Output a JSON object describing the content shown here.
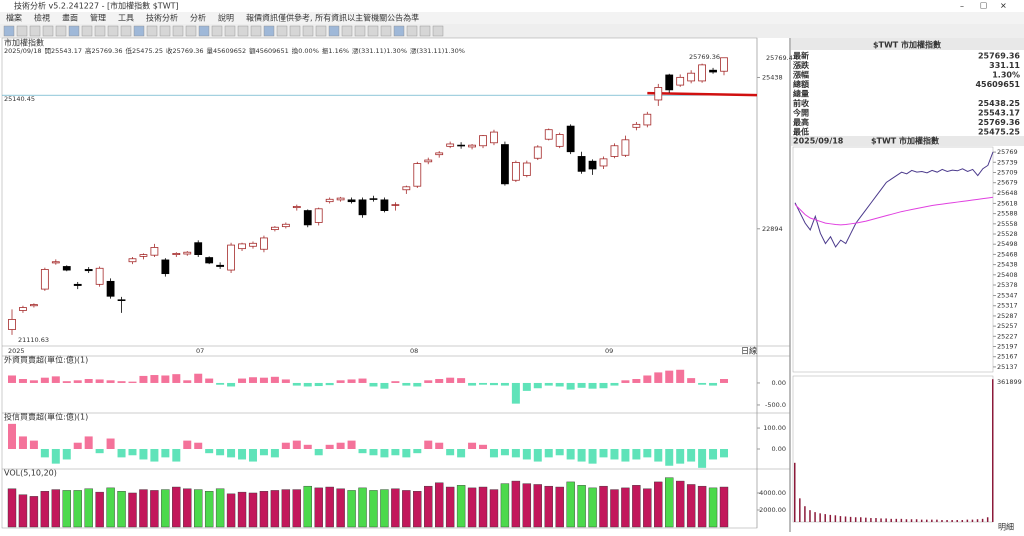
{
  "window_title": "技術分析 v5.2.241227 - [市加權指數 $TWT]",
  "menu": [
    "檔案",
    "檢視",
    "畫面",
    "管理",
    "工具",
    "技術分析",
    "分析",
    "說明",
    "報價資訊僅供參考, 所有資訊以主管機關公告為準"
  ],
  "chart_data": [
    {
      "type": "candlestick",
      "title": "市加權指數",
      "info": [
        "2025/09/18",
        "開25543.17",
        "高25769.36",
        "低25475.25",
        "收25769.36",
        "量45609652",
        "額45609651",
        "換0.00%",
        "振1.16%",
        "漲(331.11)1.30%",
        "漲(331.11)1.30%"
      ],
      "info_colors": [
        "#333",
        "#c00",
        "#c00",
        "#c00",
        "#c00",
        "#333",
        "#333",
        "#333",
        "#333",
        "#c00",
        "#c00"
      ],
      "up_color": "#a52a2a",
      "down_color": "#000000",
      "candles": [
        [
          21200,
          21540,
          21110.63,
          21370
        ],
        [
          21520,
          21600,
          21480,
          21570
        ],
        [
          21600,
          21640,
          21570,
          21620
        ],
        [
          21880,
          22240,
          21850,
          22210
        ],
        [
          22320,
          22380,
          22290,
          22340
        ],
        [
          22260,
          22280,
          22180,
          22200
        ],
        [
          21960,
          22000,
          21880,
          21940
        ],
        [
          22210,
          22250,
          22150,
          22190
        ],
        [
          21960,
          22260,
          21920,
          22230
        ],
        [
          22010,
          22060,
          21720,
          21760
        ],
        [
          21700,
          21750,
          21480,
          21690
        ],
        [
          22340,
          22420,
          22300,
          22390
        ],
        [
          22430,
          22480,
          22380,
          22460
        ],
        [
          22450,
          22640,
          22420,
          22580
        ],
        [
          22370,
          22400,
          22090,
          22140
        ],
        [
          22460,
          22500,
          22420,
          22480
        ],
        [
          22470,
          22520,
          22440,
          22500
        ],
        [
          22660,
          22700,
          22420,
          22460
        ],
        [
          22410,
          22430,
          22300,
          22320
        ],
        [
          22280,
          22330,
          22220,
          22260
        ],
        [
          22200,
          22660,
          22150,
          22620
        ],
        [
          22560,
          22660,
          22520,
          22640
        ],
        [
          22600,
          22680,
          22560,
          22650
        ],
        [
          22550,
          22780,
          22500,
          22740
        ],
        [
          22880,
          22940,
          22850,
          22920
        ],
        [
          22930,
          23000,
          22900,
          22970
        ],
        [
          23250,
          23300,
          23200,
          23270
        ],
        [
          23200,
          23220,
          22920,
          22960
        ],
        [
          23000,
          23250,
          22950,
          23230
        ],
        [
          23350,
          23420,
          23320,
          23390
        ],
        [
          23380,
          23430,
          23350,
          23410
        ],
        [
          23380,
          23420,
          23320,
          23350
        ],
        [
          23380,
          23420,
          23080,
          23130
        ],
        [
          23400,
          23450,
          23350,
          23390
        ],
        [
          23380,
          23420,
          23170,
          23200
        ],
        [
          23290,
          23340,
          23200,
          23300
        ],
        [
          23550,
          23620,
          23480,
          23600
        ],
        [
          23610,
          24020,
          23580,
          23990
        ],
        [
          24020,
          24090,
          23980,
          24050
        ],
        [
          24140,
          24200,
          24090,
          24170
        ],
        [
          24280,
          24360,
          24250,
          24320
        ],
        [
          24300,
          24350,
          24240,
          24290
        ],
        [
          24270,
          24320,
          24230,
          24300
        ],
        [
          24290,
          24470,
          24250,
          24460
        ],
        [
          24340,
          24560,
          24300,
          24520
        ],
        [
          24310,
          24360,
          23620,
          23650
        ],
        [
          23710,
          24040,
          23680,
          24010
        ],
        [
          23790,
          24040,
          23760,
          24000
        ],
        [
          24080,
          24300,
          24050,
          24270
        ],
        [
          24400,
          24580,
          24380,
          24560
        ],
        [
          24280,
          24510,
          24250,
          24480
        ],
        [
          24620,
          24650,
          24150,
          24190
        ],
        [
          24110,
          24190,
          23820,
          23860
        ],
        [
          24030,
          24060,
          23800,
          23900
        ],
        [
          23950,
          24110,
          23900,
          24070
        ],
        [
          24110,
          24330,
          24080,
          24290
        ],
        [
          24130,
          24460,
          24100,
          24390
        ],
        [
          24600,
          24690,
          24550,
          24650
        ],
        [
          24640,
          24860,
          24600,
          24820
        ],
        [
          25060,
          25330,
          24960,
          25270
        ],
        [
          25480,
          25500,
          25180,
          25230
        ],
        [
          25310,
          25490,
          25280,
          25440
        ],
        [
          25380,
          25560,
          25340,
          25510
        ],
        [
          25380,
          25670,
          25350,
          25650
        ],
        [
          25560,
          25600,
          25500,
          25530
        ],
        [
          25543.17,
          25769.36,
          25475.25,
          25769.36
        ]
      ],
      "ylim": [
        20940,
        25900
      ],
      "yticks": [
        22894,
        25438
      ],
      "last_price": {
        "value": 25769.36,
        "label": "25769.4"
      },
      "ref_line": 25140.45,
      "ref_color": "#4aa3c0",
      "trend_color": "#d01010",
      "x_labels": [
        "2025",
        "07",
        "08",
        "09"
      ],
      "period": "日線"
    },
    {
      "type": "bar",
      "title": "外資買賣超(單位:億)(1)",
      "positive_color": "#f4729a",
      "negative_color": "#5fe3b9",
      "values": [
        170,
        90,
        60,
        120,
        150,
        40,
        60,
        90,
        80,
        60,
        40,
        30,
        160,
        180,
        170,
        200,
        60,
        210,
        100,
        -40,
        -80,
        100,
        130,
        120,
        140,
        80,
        -60,
        -80,
        -70,
        -50,
        60,
        80,
        100,
        -80,
        -130,
        40,
        -60,
        -80,
        60,
        90,
        120,
        110,
        -60,
        -40,
        -50,
        -60,
        -470,
        -180,
        -120,
        -60,
        -80,
        -150,
        -110,
        -130,
        -120,
        -60,
        60,
        90,
        170,
        240,
        280,
        300,
        110,
        -40,
        -60,
        90
      ],
      "ylim": [
        -660,
        590
      ],
      "yticks": [
        {
          "value": 0,
          "label": "0.00"
        },
        {
          "value": -500,
          "label": "-500.0"
        }
      ]
    },
    {
      "type": "bar",
      "title": "投信買賣超(單位:億)(1)",
      "positive_color": "#f4729a",
      "negative_color": "#5fe3b9",
      "values": [
        120,
        60,
        40,
        -40,
        -70,
        -50,
        30,
        60,
        -20,
        50,
        -40,
        -30,
        -50,
        -60,
        -40,
        -60,
        40,
        30,
        -20,
        -30,
        -40,
        -50,
        -60,
        -30,
        -40,
        30,
        40,
        20,
        -30,
        20,
        30,
        40,
        -20,
        -30,
        -40,
        -30,
        -40,
        -20,
        40,
        30,
        -30,
        -40,
        30,
        20,
        -40,
        -30,
        -40,
        -50,
        -60,
        -40,
        -30,
        -50,
        -60,
        -70,
        -40,
        -50,
        -60,
        -50,
        -40,
        -60,
        -80,
        -70,
        -60,
        -90,
        -50,
        -40
      ],
      "ylim": [
        -86,
        148
      ],
      "yticks": [
        {
          "value": 0,
          "label": "0.00"
        },
        {
          "value": 100,
          "label": "100.00"
        }
      ]
    },
    {
      "type": "volume",
      "title": "VOL(5,10,20)",
      "up_color": "#c2185b",
      "down_color": "#4cd94c",
      "values": [
        4500,
        3800,
        3600,
        4200,
        4400,
        4300,
        4300,
        4500,
        4100,
        4600,
        4200,
        4000,
        4400,
        4300,
        4400,
        4700,
        4500,
        4400,
        4200,
        4500,
        3900,
        4100,
        4000,
        4200,
        4300,
        4400,
        4400,
        4800,
        4600,
        4700,
        4500,
        4300,
        4600,
        4300,
        4400,
        4500,
        4300,
        4200,
        4800,
        5200,
        4700,
        4900,
        4600,
        4700,
        4400,
        5100,
        5400,
        5100,
        5000,
        4800,
        4700,
        5300,
        4900,
        4600,
        4800,
        4400,
        4600,
        4900,
        4500,
        5300,
        5800,
        5400,
        5000,
        4800,
        4600,
        4700
      ],
      "ylim": [
        0,
        6700
      ],
      "yticks": [
        {
          "value": 2000,
          "label": "2000.00"
        },
        {
          "value": 4000,
          "label": "4000.00"
        }
      ]
    },
    {
      "type": "line",
      "title": "$TWT 市加權指數",
      "date": "2025/09/18",
      "series": [
        {
          "color": "#4b3a8c",
          "values": [
            25620,
            25590,
            25560,
            25540,
            25580,
            25530,
            25500,
            25520,
            25490,
            25510,
            25500,
            25530,
            25560,
            25580,
            25600,
            25620,
            25640,
            25660,
            25680,
            25690,
            25700,
            25710,
            25705,
            25715,
            25710,
            25712,
            25708,
            25715,
            25710,
            25718,
            25712,
            25716,
            25714,
            25720,
            25712,
            25718,
            25700,
            25720,
            25730,
            25769.36
          ]
        },
        {
          "color": "#e040e0",
          "values": [
            25615,
            25600,
            25585,
            25575,
            25570,
            25565,
            25560,
            25558,
            25556,
            25555,
            25556,
            25558,
            25560,
            25563,
            25566,
            25570,
            25574,
            25578,
            25582,
            25586,
            25590,
            25594,
            25597,
            25600,
            25603,
            25606,
            25609,
            25612,
            25614,
            25616,
            25618,
            25620,
            25622,
            25624,
            25626,
            25628,
            25630,
            25632,
            25634,
            25636
          ]
        }
      ],
      "ylim": [
        25122,
        25784
      ],
      "yticks": [
        25769,
        25739,
        25709,
        25679,
        25648,
        25618,
        25588,
        25558,
        25528,
        25498,
        25468,
        25438,
        25408,
        25378,
        25347,
        25317,
        25287,
        25257,
        25227,
        25197,
        25167,
        25137
      ]
    },
    {
      "type": "bar",
      "color": "#8b1a3a",
      "values": [
        150000,
        60000,
        40000,
        30000,
        25000,
        22000,
        20000,
        18000,
        17000,
        15000,
        14000,
        13000,
        12000,
        12000,
        11000,
        10000,
        10000,
        9000,
        9000,
        8000,
        8000,
        8000,
        7000,
        7000,
        7000,
        6000,
        6000,
        6000,
        6000,
        5000,
        5000,
        5000,
        5000,
        5000,
        6000,
        6000,
        7000,
        8000,
        12000,
        361899
      ],
      "ylim": [
        0,
        370000
      ],
      "footer": "明細"
    }
  ],
  "quote": {
    "title": "$TWT 市加權指數",
    "rows": [
      {
        "label": "最新",
        "value": 25769.36,
        "color": "#c00"
      },
      {
        "label": "漲跌",
        "value": 331.11,
        "color": "#c00"
      },
      {
        "label": "漲幅",
        "value": "1.30%",
        "color": "#c00"
      },
      {
        "label": "總額",
        "value": 45609651,
        "color": "#000"
      },
      {
        "label": "總量"
      },
      {
        "label": "前收",
        "value": 25438.25,
        "color": "#000"
      },
      {
        "label": "今開",
        "value": 25543.17,
        "color": "#c00"
      },
      {
        "label": "最高",
        "value": 25769.36,
        "color": "#c00"
      },
      {
        "label": "最低",
        "value": 25475.25,
        "color": "#c00"
      }
    ]
  }
}
